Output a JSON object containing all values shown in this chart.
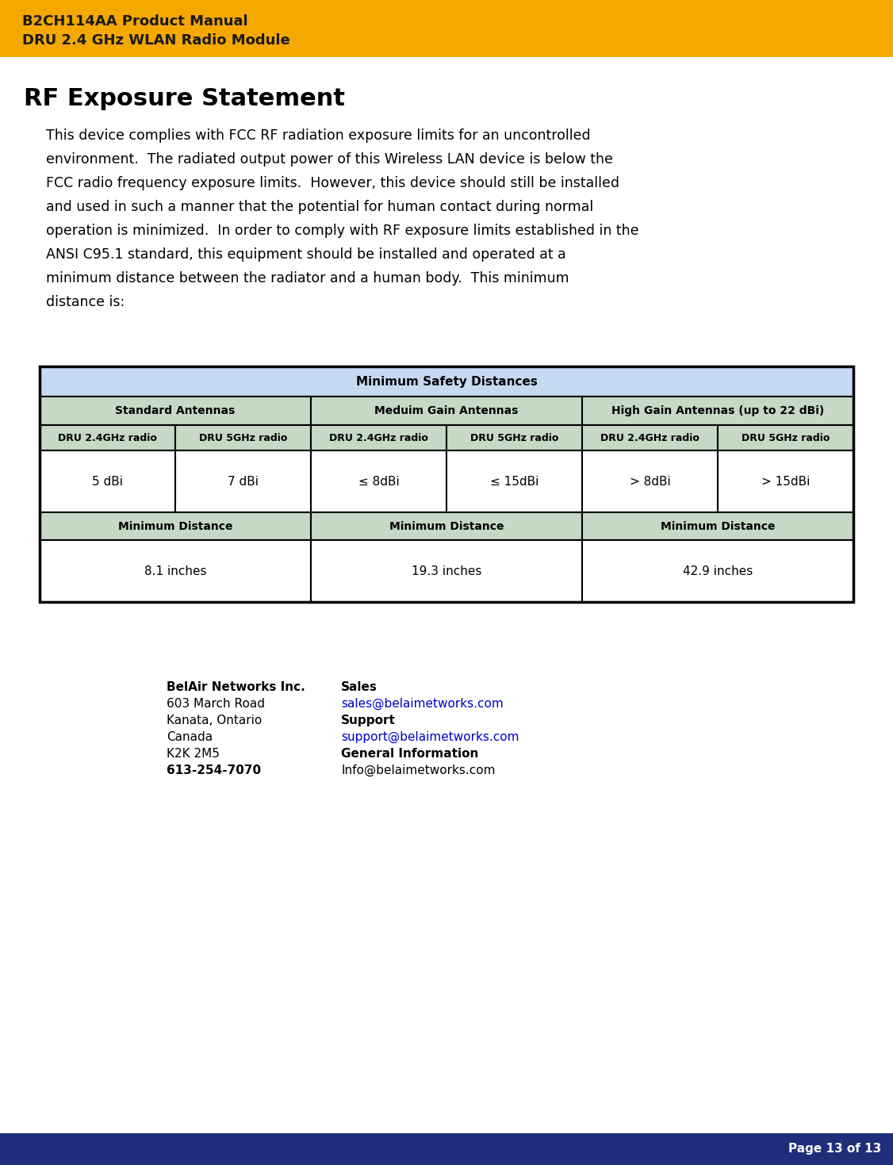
{
  "header_bg": "#F5A800",
  "header_line1": "B2CH114AA Product Manual",
  "header_line2": "DRU 2.4 GHz WLAN Radio Module",
  "header_text_color": "#1a1a1a",
  "page_bg": "#ffffff",
  "title": "RF Exposure Statement",
  "body_text_lines": [
    "This device complies with FCC RF radiation exposure limits for an uncontrolled",
    "environment.  The radiated output power of this Wireless LAN device is below the",
    "FCC radio frequency exposure limits.  However, this device should still be installed",
    "and used in such a manner that the potential for human contact during normal",
    "operation is minimized.  In order to comply with RF exposure limits established in the",
    "ANSI C95.1 standard, this equipment should be installed and operated at a",
    "minimum distance between the radiator and a human body.  This minimum",
    "distance is:"
  ],
  "table_header_bg": "#c5d9c5",
  "table_top_header_bg": "#c5d9f1",
  "table_border_color": "#000000",
  "table_title": "Minimum Safety Distances",
  "col_headers": [
    "Standard Antennas",
    "Meduim Gain Antennas",
    "High Gain Antennas (up to 22 dBi)"
  ],
  "row_headers": [
    "DRU 2.4GHz radio",
    "DRU 5GHz radio",
    "DRU 2.4GHz radio",
    "DRU 5GHz radio",
    "DRU 2.4GHz radio",
    "DRU 5GHz radio"
  ],
  "gain_values": [
    "5 dBi",
    "7 dBi",
    "≤ 8dBi",
    "≤ 15dBi",
    "> 8dBi",
    "> 15dBi"
  ],
  "distance_label": "Minimum Distance",
  "distance_values": [
    "8.1 inches",
    "19.3 inches",
    "42.9 inches"
  ],
  "footer_left_bold": "BelAir Networks Inc.",
  "footer_left_lines": [
    "603 March Road",
    "Kanata, Ontario",
    "Canada",
    "K2K 2M5"
  ],
  "footer_left_bold2": "613-254-7070",
  "footer_right_sales_bold": "Sales",
  "footer_right_sales_email": "sales@belaimetworks.com",
  "footer_right_support_bold": "Support",
  "footer_right_support_email": "support@belaimetworks.com",
  "footer_right_geninfo_bold": "General Information",
  "footer_right_geninfo_text": "Info@belaimetworks.com",
  "page_num": "Page 13 of 13",
  "page_num_bg": "#1F2D7B",
  "page_num_text_color": "#ffffff"
}
